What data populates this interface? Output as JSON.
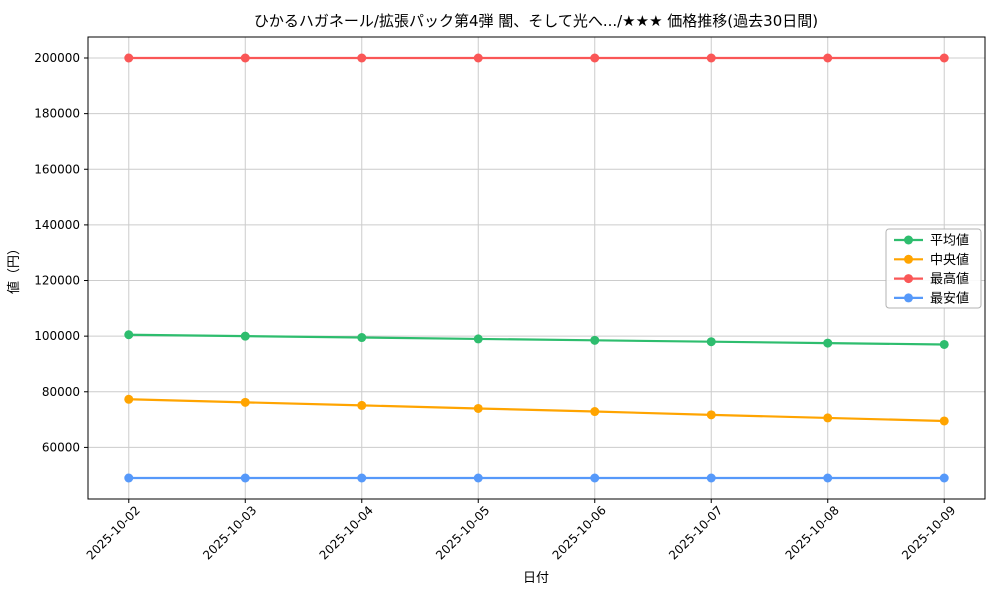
{
  "chart_data": {
    "type": "line",
    "title": "ひかるハガネール/拡張パック第4弾 闇、そして光へ.../★★★ 価格推移(過去30日間)",
    "xlabel": "日付",
    "ylabel": "値（円）",
    "categories": [
      "2025-10-02",
      "2025-10-03",
      "2025-10-04",
      "2025-10-05",
      "2025-10-06",
      "2025-10-07",
      "2025-10-08",
      "2025-10-09"
    ],
    "yticks": [
      60000,
      80000,
      100000,
      120000,
      140000,
      160000,
      180000,
      200000
    ],
    "ylim": [
      41450,
      207550
    ],
    "grid": true,
    "legend_position": "right-center",
    "colors": {
      "grid": "#cccccc",
      "spine": "#000000",
      "legend_border": "#b3b3b3",
      "background": "#ffffff"
    },
    "series": [
      {
        "key": "average-price",
        "name": "平均値",
        "color": "#2ebd6e",
        "values": [
          100500,
          100000,
          99500,
          99000,
          98500,
          98000,
          97500,
          97000
        ]
      },
      {
        "key": "median-price",
        "name": "中央値",
        "color": "#ffa400",
        "values": [
          77300,
          76200,
          75100,
          74000,
          72900,
          71700,
          70600,
          69500
        ]
      },
      {
        "key": "highest-price",
        "name": "最高値",
        "color": "#fa5757",
        "values": [
          200000,
          200000,
          200000,
          200000,
          200000,
          200000,
          200000,
          200000
        ]
      },
      {
        "key": "lowest-price",
        "name": "最安値",
        "color": "#5699fa",
        "values": [
          49000,
          49000,
          49000,
          49000,
          49000,
          49000,
          49000,
          49000
        ]
      }
    ]
  }
}
